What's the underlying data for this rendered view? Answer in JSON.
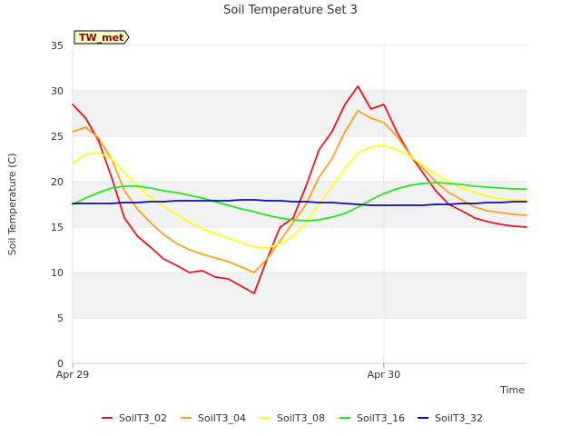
{
  "chart_data": {
    "type": "line",
    "title": "Soil Temperature Set 3",
    "xlabel": "Time",
    "ylabel": "Soil Temperature (C)",
    "station_tag": "TW_met",
    "ylim": [
      0,
      35
    ],
    "yticks": [
      0,
      5,
      10,
      15,
      20,
      25,
      30,
      35
    ],
    "xlim": [
      "2023-04-29 00:00",
      "2023-04-30 11:00"
    ],
    "xticks": [
      {
        "label": "Apr 29",
        "x": "2023-04-29 00:00"
      },
      {
        "label": "Apr 30",
        "x": "2023-04-30 00:00"
      }
    ],
    "grid": true,
    "legend_position": "bottom",
    "x_hours_from_start": [
      0,
      1,
      2,
      3,
      4,
      5,
      6,
      7,
      8,
      9,
      10,
      11,
      12,
      13,
      14,
      15,
      16,
      17,
      18,
      19,
      20,
      21,
      22,
      23,
      24,
      25,
      26,
      27,
      28,
      29,
      30,
      31,
      32,
      33,
      34,
      35
    ],
    "series": [
      {
        "name": "SoilT3_02",
        "color": "#e8141e",
        "values": [
          28.5,
          27.0,
          24.5,
          20.5,
          16.0,
          14.0,
          12.8,
          11.5,
          10.8,
          10.0,
          10.2,
          9.5,
          9.3,
          8.5,
          7.7,
          11.5,
          15.0,
          16.0,
          19.5,
          23.5,
          25.5,
          28.5,
          30.5,
          28.0,
          28.5,
          25.5,
          23.0,
          21.0,
          19.0,
          17.5,
          16.8,
          16.0,
          15.6,
          15.3,
          15.1,
          15.0
        ]
      },
      {
        "name": "SoilT3_04",
        "color": "#ffa01e",
        "values": [
          25.5,
          26.0,
          24.8,
          22.5,
          19.0,
          17.0,
          15.5,
          14.2,
          13.2,
          12.5,
          12.0,
          11.6,
          11.2,
          10.6,
          10.0,
          11.5,
          13.5,
          15.5,
          17.5,
          20.5,
          22.5,
          25.5,
          27.8,
          27.0,
          26.5,
          25.0,
          23.0,
          21.5,
          20.0,
          18.8,
          18.0,
          17.2,
          16.8,
          16.6,
          16.4,
          16.3
        ]
      },
      {
        "name": "SoilT3_08",
        "color": "#ffff1e",
        "values": [
          22.0,
          23.0,
          23.2,
          22.5,
          21.0,
          19.5,
          18.3,
          17.3,
          16.4,
          15.5,
          14.8,
          14.3,
          13.8,
          13.3,
          12.8,
          12.7,
          13.2,
          14.0,
          15.5,
          17.5,
          19.5,
          21.5,
          23.2,
          23.8,
          24.0,
          23.5,
          22.8,
          21.8,
          20.8,
          20.0,
          19.3,
          18.8,
          18.4,
          18.1,
          18.0,
          17.9
        ]
      },
      {
        "name": "SoilT3_16",
        "color": "#1eeb1e",
        "values": [
          17.5,
          18.2,
          18.8,
          19.3,
          19.5,
          19.5,
          19.3,
          19.0,
          18.8,
          18.5,
          18.2,
          17.8,
          17.4,
          17.0,
          16.7,
          16.3,
          16.0,
          15.8,
          15.7,
          15.8,
          16.1,
          16.5,
          17.2,
          18.0,
          18.7,
          19.2,
          19.6,
          19.8,
          19.9,
          19.8,
          19.7,
          19.5,
          19.4,
          19.3,
          19.2,
          19.2
        ]
      },
      {
        "name": "SoilT3_32",
        "color": "#0a0ab4",
        "values": [
          17.6,
          17.6,
          17.6,
          17.6,
          17.7,
          17.7,
          17.8,
          17.8,
          17.9,
          17.9,
          17.9,
          17.9,
          17.9,
          18.0,
          18.0,
          17.9,
          17.9,
          17.8,
          17.8,
          17.7,
          17.7,
          17.6,
          17.5,
          17.4,
          17.4,
          17.4,
          17.4,
          17.4,
          17.5,
          17.5,
          17.6,
          17.6,
          17.7,
          17.7,
          17.8,
          17.8
        ]
      }
    ]
  }
}
